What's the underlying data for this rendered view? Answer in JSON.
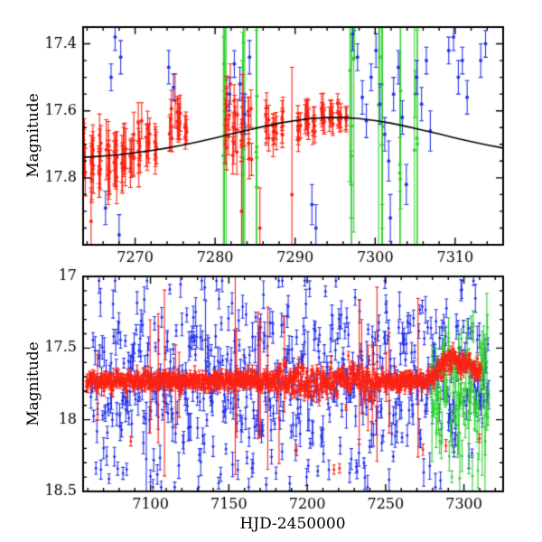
{
  "figure": {
    "background": "#ffffff",
    "xlabel": "HJD-2450000",
    "panels": [
      {
        "ylabel": "Magnitude"
      },
      {
        "ylabel": "Magnitude"
      }
    ]
  },
  "chart_data": [
    {
      "id": "top-panel",
      "type": "scatter",
      "title": "",
      "xlabel": "",
      "ylabel": "Magnitude",
      "x_range": [
        7263.5,
        7316
      ],
      "y_range": [
        17.35,
        18.0
      ],
      "y_inverted_magnitude_axis": true,
      "grid": false,
      "x_ticks": [
        7270,
        7280,
        7290,
        7300,
        7310
      ],
      "x_tick_labels": [
        "7270",
        "7280",
        "7290",
        "7300",
        "7310"
      ],
      "x_minor_step": 2,
      "y_ticks": [
        17.4,
        17.6,
        17.8
      ],
      "y_tick_labels": [
        "17.4",
        "17.6",
        "17.8"
      ],
      "y_minor_step": 0.05,
      "model_curve": {
        "name": "microlensing-model-curve",
        "color": "#000000",
        "points": [
          [
            7262,
            17.74
          ],
          [
            7264,
            17.738
          ],
          [
            7266,
            17.735
          ],
          [
            7268,
            17.731
          ],
          [
            7270,
            17.725
          ],
          [
            7272,
            17.719
          ],
          [
            7274,
            17.711
          ],
          [
            7276,
            17.702
          ],
          [
            7278,
            17.692
          ],
          [
            7280,
            17.681
          ],
          [
            7282,
            17.669
          ],
          [
            7284,
            17.658
          ],
          [
            7286,
            17.647
          ],
          [
            7288,
            17.637
          ],
          [
            7290,
            17.629
          ],
          [
            7292,
            17.623
          ],
          [
            7294,
            17.62
          ],
          [
            7296,
            17.62
          ],
          [
            7298,
            17.623
          ],
          [
            7300,
            17.629
          ],
          [
            7302,
            17.637
          ],
          [
            7304,
            17.647
          ],
          [
            7306,
            17.658
          ],
          [
            7308,
            17.669
          ],
          [
            7310,
            17.681
          ],
          [
            7312,
            17.692
          ],
          [
            7314,
            17.702
          ],
          [
            7316,
            17.711
          ]
        ]
      },
      "series": [
        {
          "name": "green-followup-points",
          "color": "#30cf30",
          "seed": 33,
          "marker_r": 2,
          "cap": 2.5,
          "clusters": [
            [
              7281.2,
              0.3,
              4,
              17.62,
              0.1,
              0.25,
              0.55
            ],
            [
              7283.5,
              0.3,
              4,
              17.66,
              0.12,
              0.25,
              0.5
            ],
            [
              7285.2,
              0.2,
              3,
              17.6,
              0.1,
              0.2,
              0.5
            ],
            [
              7297.1,
              0.3,
              4,
              17.65,
              0.12,
              0.25,
              0.55
            ],
            [
              7300.7,
              0.3,
              4,
              17.6,
              0.12,
              0.3,
              0.55
            ],
            [
              7303.2,
              0.2,
              3,
              17.68,
              0.1,
              0.2,
              0.5
            ],
            [
              7305.1,
              0.2,
              3,
              17.7,
              0.12,
              0.2,
              0.45
            ]
          ],
          "points": [
            [
              7281.1,
              17.46,
              0.08
            ],
            [
              7283.4,
              17.52,
              0.07
            ],
            [
              7285.2,
              17.74,
              0.09
            ],
            [
              7297.0,
              17.82,
              0.1
            ],
            [
              7297.4,
              17.36,
              0.08
            ],
            [
              7300.6,
              17.44,
              0.09
            ],
            [
              7300.9,
              18.0,
              0.12
            ],
            [
              7303.1,
              17.76,
              0.08
            ],
            [
              7305.0,
              17.55,
              0.07
            ]
          ]
        },
        {
          "name": "red-survey-points",
          "color": "#fb2314",
          "seed": 11,
          "marker_r": 2,
          "cap": 2.5,
          "clusters": [
            [
              7263.6,
              0.25,
              7,
              17.745,
              0.035,
              0.05,
              0.09
            ],
            [
              7264.6,
              0.25,
              9,
              17.75,
              0.04,
              0.05,
              0.09
            ],
            [
              7265.6,
              0.25,
              8,
              17.74,
              0.035,
              0.05,
              0.08
            ],
            [
              7266.6,
              0.25,
              8,
              17.75,
              0.04,
              0.05,
              0.09
            ],
            [
              7267.6,
              0.25,
              8,
              17.74,
              0.035,
              0.04,
              0.08
            ],
            [
              7268.6,
              0.25,
              8,
              17.745,
              0.04,
              0.05,
              0.09
            ],
            [
              7269.6,
              0.25,
              7,
              17.73,
              0.03,
              0.04,
              0.07
            ],
            [
              7270.6,
              0.25,
              7,
              17.7,
              0.03,
              0.04,
              0.07
            ],
            [
              7271.6,
              0.25,
              7,
              17.695,
              0.03,
              0.04,
              0.06
            ],
            [
              7272.5,
              0.2,
              5,
              17.7,
              0.025,
              0.04,
              0.06
            ],
            [
              7274.5,
              0.2,
              5,
              17.67,
              0.03,
              0.035,
              0.06
            ],
            [
              7275.5,
              0.25,
              9,
              17.64,
              0.03,
              0.035,
              0.055
            ],
            [
              7276.4,
              0.2,
              5,
              17.65,
              0.025,
              0.035,
              0.05
            ],
            [
              7281.5,
              0.3,
              9,
              17.64,
              0.06,
              0.04,
              0.07
            ],
            [
              7282.5,
              0.3,
              8,
              17.65,
              0.06,
              0.04,
              0.07
            ],
            [
              7283.5,
              0.3,
              7,
              17.66,
              0.06,
              0.04,
              0.08
            ],
            [
              7284.4,
              0.25,
              6,
              17.63,
              0.05,
              0.04,
              0.07
            ],
            [
              7286.5,
              0.25,
              7,
              17.65,
              0.03,
              0.035,
              0.055
            ],
            [
              7287.5,
              0.25,
              7,
              17.64,
              0.03,
              0.035,
              0.055
            ],
            [
              7288.4,
              0.2,
              5,
              17.635,
              0.025,
              0.03,
              0.05
            ],
            [
              7290.5,
              0.25,
              7,
              17.65,
              0.02,
              0.03,
              0.05
            ],
            [
              7291.5,
              0.25,
              7,
              17.64,
              0.02,
              0.03,
              0.05
            ],
            [
              7292.4,
              0.2,
              5,
              17.635,
              0.02,
              0.03,
              0.045
            ],
            [
              7293.5,
              0.25,
              7,
              17.615,
              0.015,
              0.025,
              0.045
            ],
            [
              7294.5,
              0.25,
              7,
              17.61,
              0.015,
              0.025,
              0.045
            ],
            [
              7295.5,
              0.25,
              7,
              17.615,
              0.015,
              0.025,
              0.04
            ],
            [
              7296.3,
              0.15,
              3,
              17.62,
              0.012,
              0.025,
              0.04
            ]
          ],
          "points": [
            [
              7263.0,
              17.78,
              0.55
            ],
            [
              7264.5,
              17.93,
              0.1
            ],
            [
              7275.0,
              17.57,
              0.08
            ],
            [
              7281.9,
              17.52,
              0.06
            ],
            [
              7283.3,
              17.9,
              0.15
            ],
            [
              7285.6,
              17.95,
              0.12
            ],
            [
              7289.6,
              17.85,
              0.38
            ]
          ]
        },
        {
          "name": "blue-survey-points",
          "color": "#2633e8",
          "seed": 22,
          "marker_r": 2,
          "cap": 2.5,
          "points": [
            [
              7266.3,
              17.89,
              0.05
            ],
            [
              7268.0,
              17.97,
              0.06
            ],
            [
              7267.0,
              17.5,
              0.04
            ],
            [
              7267.5,
              17.38,
              0.04
            ],
            [
              7268.2,
              17.44,
              0.05
            ],
            [
              7274.2,
              17.47,
              0.05
            ],
            [
              7274.8,
              17.53,
              0.04
            ],
            [
              7281.8,
              17.55,
              0.05
            ],
            [
              7282.4,
              17.46,
              0.04
            ],
            [
              7283.1,
              17.52,
              0.05
            ],
            [
              7283.7,
              17.61,
              0.06
            ],
            [
              7284.3,
              17.44,
              0.05
            ],
            [
              7292.1,
              17.88,
              0.06
            ],
            [
              7292.6,
              17.95,
              0.07
            ],
            [
              7297.2,
              17.37,
              0.05
            ],
            [
              7297.8,
              17.44,
              0.04
            ],
            [
              7298.4,
              17.56,
              0.05
            ],
            [
              7298.9,
              17.63,
              0.05
            ],
            [
              7299.5,
              17.5,
              0.04
            ],
            [
              7300.1,
              17.42,
              0.05
            ],
            [
              7300.6,
              17.58,
              0.06
            ],
            [
              7301.2,
              17.67,
              0.05
            ],
            [
              7301.7,
              17.75,
              0.06
            ],
            [
              7301.9,
              17.92,
              0.07
            ],
            [
              7302.3,
              17.55,
              0.05
            ],
            [
              7302.9,
              17.47,
              0.05
            ],
            [
              7303.4,
              17.62,
              0.05
            ],
            [
              7303.9,
              17.82,
              0.06
            ],
            [
              7305.2,
              17.5,
              0.05
            ],
            [
              7305.8,
              17.58,
              0.05
            ],
            [
              7306.4,
              17.45,
              0.04
            ],
            [
              7306.9,
              17.66,
              0.06
            ],
            [
              7309.2,
              17.42,
              0.04
            ],
            [
              7309.8,
              17.38,
              0.04
            ],
            [
              7310.4,
              17.5,
              0.05
            ],
            [
              7310.9,
              17.45,
              0.04
            ],
            [
              7311.5,
              17.56,
              0.05
            ],
            [
              7313.2,
              17.45,
              0.05
            ],
            [
              7313.8,
              17.4,
              0.04
            ]
          ]
        }
      ]
    },
    {
      "id": "bottom-panel",
      "type": "scatter",
      "title": "",
      "xlabel": "HJD-2450000",
      "ylabel": "Magnitude",
      "x_range": [
        7057,
        7325
      ],
      "y_range": [
        17.0,
        18.5
      ],
      "y_inverted_magnitude_axis": true,
      "grid": false,
      "x_ticks": [
        7100,
        7150,
        7200,
        7250,
        7300
      ],
      "x_tick_labels": [
        "7100",
        "7150",
        "7200",
        "7250",
        "7300"
      ],
      "x_minor_step": 10,
      "y_ticks": [
        17.0,
        17.5,
        18.0,
        18.5
      ],
      "y_tick_labels": [
        "17",
        "17.5",
        "18",
        "18.5"
      ],
      "y_minor_step": 0.1,
      "series": [
        {
          "name": "blue-survey-points",
          "color": "#2633e8",
          "seed": 7,
          "marker_r": 1.5,
          "cap": 2,
          "band": {
            "x0": 7062,
            "x1": 7316,
            "n": 620,
            "base": 17.72,
            "sd": 0.34,
            "y_min": 17.03,
            "y_max": 18.47,
            "err": [
              0.03,
              0.1
            ],
            "big_p": 0.02,
            "big_err": [
              0.15,
              0.4
            ]
          }
        },
        {
          "name": "green-followup-points",
          "color": "#30cf30",
          "seed": 8,
          "marker_r": 1.5,
          "cap": 2,
          "band": {
            "x0": 7279,
            "x1": 7316,
            "n": 90,
            "base": 17.85,
            "sd": 0.28,
            "y_min": 17.35,
            "y_max": 18.45,
            "err": [
              0.04,
              0.15
            ],
            "big_p": 0.12,
            "big_err": [
              0.2,
              0.6
            ]
          }
        },
        {
          "name": "red-survey-points",
          "color": "#fb2314",
          "seed": 9,
          "marker_r": 1.5,
          "cap": 2,
          "band": {
            "x0": 7059,
            "x1": 7311,
            "n": 950,
            "base": 17.73,
            "bumps": [
              [
                -0.16,
                7291,
                5.5
              ],
              [
                -0.09,
                7303,
                5.0
              ]
            ],
            "sd_regions": [
              [
                7057,
                7180,
                0.028
              ],
              [
                7180,
                7245,
                0.058
              ],
              [
                7245,
                7282,
                0.03
              ],
              [
                7282,
                7325,
                0.035
              ]
            ],
            "y_min": 17.0,
            "y_max": 18.5,
            "err": [
              0.015,
              0.045
            ],
            "big_p": 0.025,
            "big_err": [
              0.15,
              0.75
            ],
            "out_p": 0.012,
            "out_range": [
              17.95,
              18.35
            ]
          }
        }
      ]
    }
  ]
}
